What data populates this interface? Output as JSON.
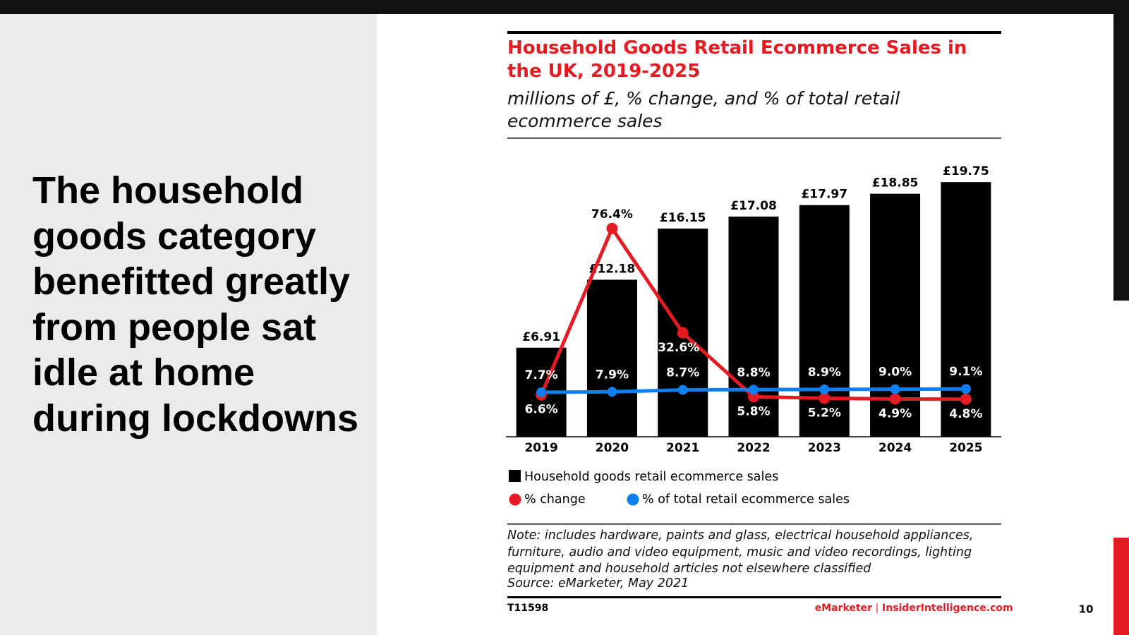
{
  "slide": {
    "heading": "The household goods category benefitted greatly from people sat idle at home during lockdowns",
    "page_number": "10"
  },
  "chart_data": {
    "type": "bar",
    "title": "Household Goods Retail Ecommerce Sales in the UK, 2019-2025",
    "subtitle": "millions of £, % change, and % of total retail ecommerce sales",
    "categories": [
      "2019",
      "2020",
      "2021",
      "2022",
      "2023",
      "2024",
      "2025"
    ],
    "series": [
      {
        "name": "Household goods retail ecommerce sales",
        "type": "bar",
        "color": "#000000",
        "values": [
          6.91,
          12.18,
          16.15,
          17.08,
          17.97,
          18.85,
          19.75
        ],
        "value_labels": [
          "£6.91",
          "£12.18",
          "£16.15",
          "£17.08",
          "£17.97",
          "£18.85",
          "£19.75"
        ]
      },
      {
        "name": "% change",
        "type": "line",
        "color": "#e41b23",
        "values": [
          6.6,
          76.4,
          32.6,
          5.8,
          5.2,
          4.9,
          4.8
        ],
        "value_labels": [
          "6.6%",
          "76.4%",
          "32.6%",
          "5.8%",
          "5.2%",
          "4.9%",
          "4.8%"
        ]
      },
      {
        "name": "% of total retail ecommerce sales",
        "type": "line",
        "color": "#0f7ff0",
        "values": [
          7.7,
          7.9,
          8.7,
          8.8,
          8.9,
          9.0,
          9.1
        ],
        "value_labels": [
          "7.7%",
          "7.9%",
          "8.7%",
          "8.8%",
          "8.9%",
          "9.0%",
          "9.1%"
        ]
      }
    ],
    "note": "Note: includes hardware, paints and glass, electrical household appliances, furniture, audio and video equipment, music and video recordings, lighting equipment and household articles not elsewhere classified",
    "source": "Source: eMarketer, May 2021",
    "chart_id": "T11598",
    "brand": "eMarketer",
    "site": "InsiderIntelligence.com"
  }
}
